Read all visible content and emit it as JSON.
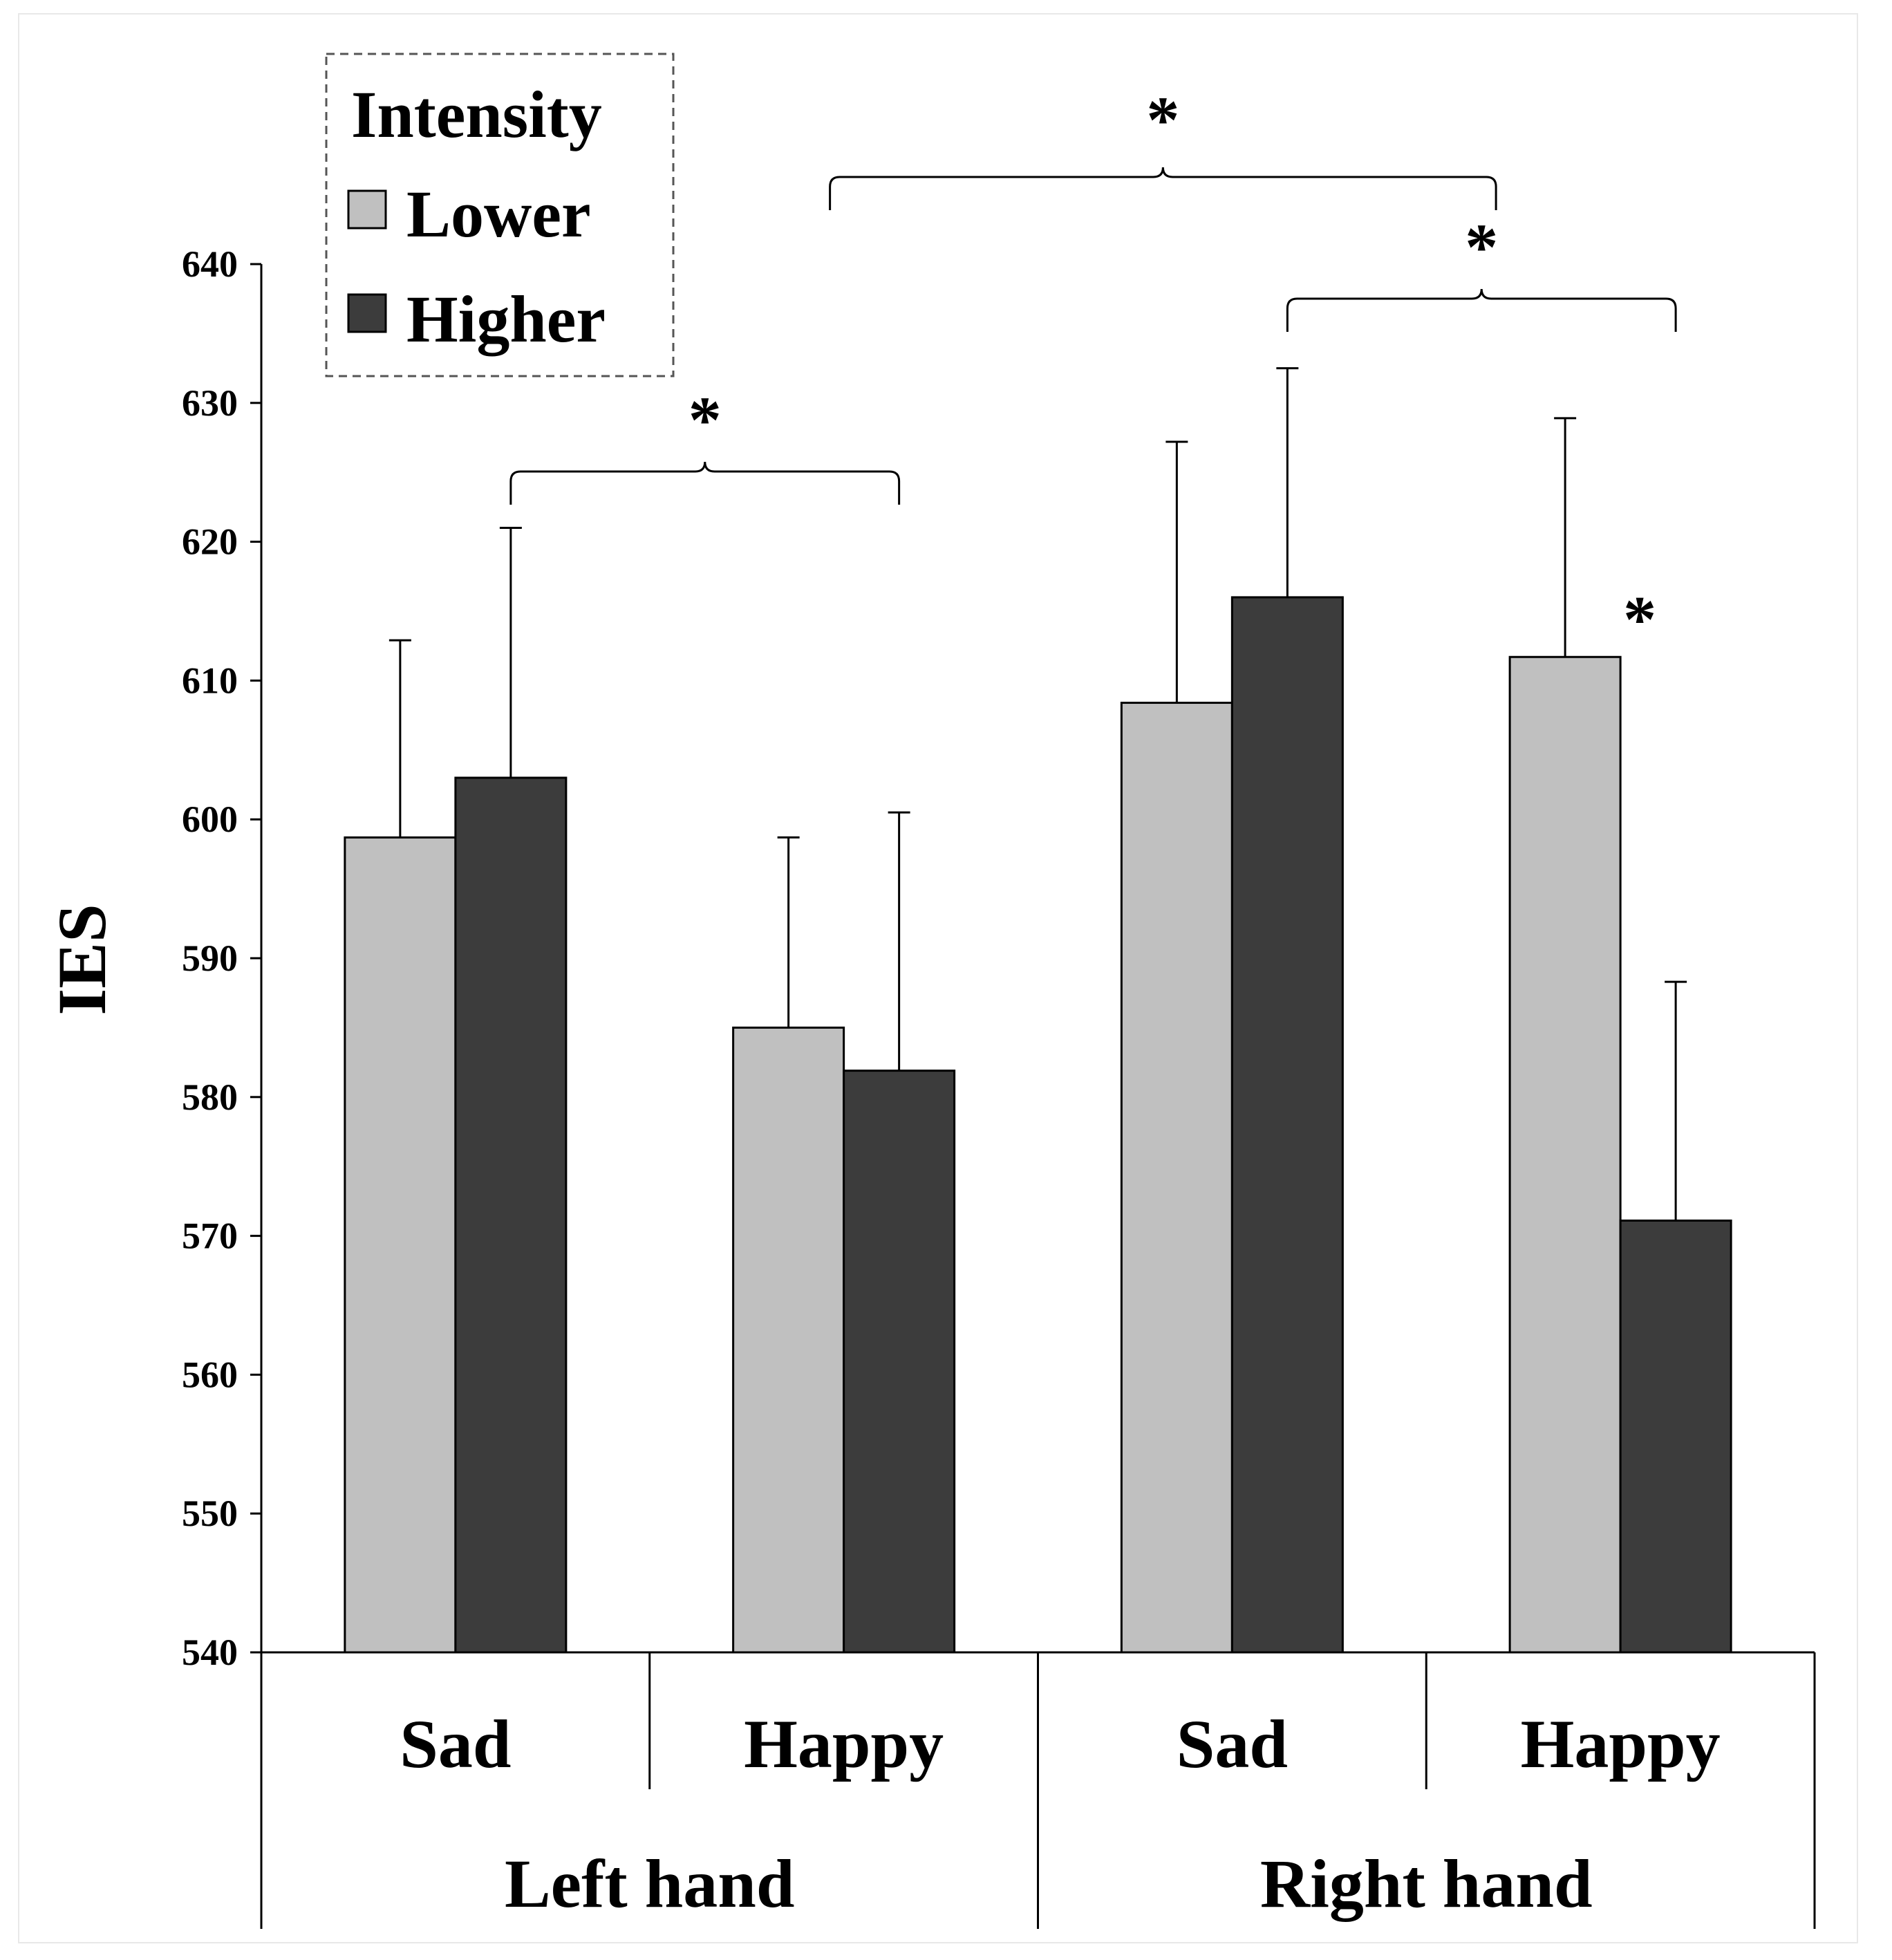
{
  "chart_data": {
    "type": "bar",
    "ylabel": "IES",
    "ylim": [
      540,
      640
    ],
    "yticks": [
      "540",
      "550",
      "560",
      "570",
      "580",
      "590",
      "600",
      "610",
      "620",
      "630",
      "640"
    ],
    "groups": [
      {
        "label": "Left hand",
        "categories": [
          "Sad",
          "Happy"
        ]
      },
      {
        "label": "Right hand",
        "categories": [
          "Sad",
          "Happy"
        ]
      }
    ],
    "legend": {
      "title": "Intensity",
      "position": "top-left"
    },
    "series": [
      {
        "name": "Lower",
        "color": "#c0c0c0",
        "values": [
          598.7,
          585.0,
          608.4,
          611.7
        ],
        "errors": [
          14.2,
          13.7,
          18.8,
          17.2
        ]
      },
      {
        "name": "Higher",
        "color": "#3c3c3c",
        "values": [
          603.0,
          581.9,
          616.0,
          571.1
        ],
        "errors": [
          18.0,
          18.6,
          16.5,
          17.2
        ]
      }
    ],
    "significance": [
      {
        "label": "*",
        "from": "Left hand Sad Higher",
        "to": "Left hand Happy Higher"
      },
      {
        "label": "*",
        "from": "Left hand Happy Higher",
        "to": "Right hand Happy Lower"
      },
      {
        "label": "*",
        "from": "Right hand Sad Higher",
        "to": "Right hand Happy Higher"
      },
      {
        "label": "*",
        "target": "Right hand Happy Lower"
      }
    ]
  }
}
